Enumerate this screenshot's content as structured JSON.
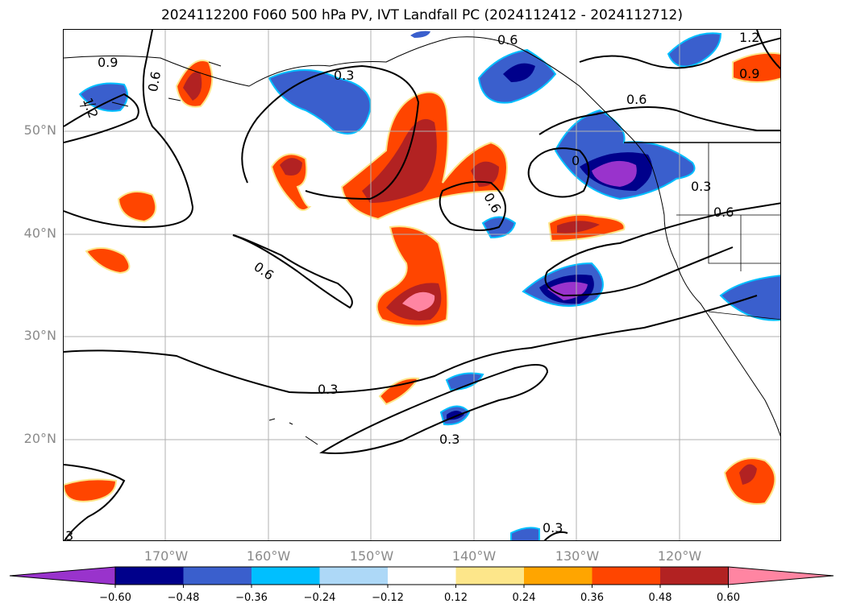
{
  "title": "2024112200 F060 500 hPa PV, IVT Landfall PC (2024112412 - 2024112712)",
  "lat_labels": [
    "50°N",
    "40°N",
    "30°N",
    "20°N"
  ],
  "lon_labels": [
    "170°W",
    "160°W",
    "150°W",
    "140°W",
    "130°W",
    "120°W"
  ],
  "contour_labels": [
    "0.9",
    "0.6",
    "1.2",
    "0.3",
    "0.6",
    "1.2",
    "0.9",
    "0.6",
    "0",
    "0.3",
    "0.6",
    "0.6",
    "0.6",
    "0.3",
    "0.3",
    "0.3",
    "3"
  ],
  "colorbar": {
    "ticks": [
      "−0.60",
      "−0.48",
      "−0.36",
      "−0.24",
      "−0.12",
      "0.12",
      "0.24",
      "0.36",
      "0.48",
      "0.60"
    ],
    "colors": [
      "#9933cc",
      "#00008b",
      "#3a5fcd",
      "#00bfff",
      "#add8f7",
      "#ffffff",
      "#fde68a",
      "#ffa500",
      "#ff4500",
      "#b22222",
      "#ff85a2"
    ]
  },
  "colors": {
    "grid": "#b0b0b0",
    "land": "#000000",
    "contour": "#000000"
  }
}
